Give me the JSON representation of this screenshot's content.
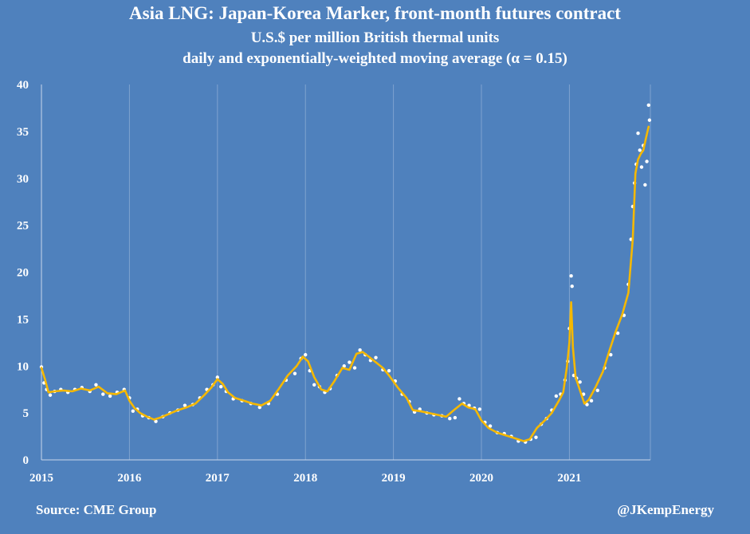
{
  "title": "Asia LNG: Japan-Korea Marker, front-month futures contract",
  "subtitle": "U.S.$ per million British thermal units",
  "subtitle2": "daily and exponentially-weighted moving average (α = 0.15)",
  "source": "Source: CME Group",
  "author": "@JKempEnergy",
  "colors": {
    "background": "#4f81bd",
    "grid": "#7fa3cf",
    "ema_line": "#f5b800",
    "daily_points": "#ffffff"
  },
  "chart_data": {
    "type": "line",
    "title": "Asia LNG: Japan-Korea Marker, front-month futures contract",
    "xlabel": "",
    "ylabel": "",
    "xlim": [
      2015,
      2021.92
    ],
    "ylim": [
      0,
      40
    ],
    "yticks": [
      "0",
      "5",
      "10",
      "15",
      "20",
      "25",
      "30",
      "35",
      "40"
    ],
    "xticks": [
      "2015",
      "2016",
      "2017",
      "2018",
      "2019",
      "2020",
      "2021"
    ],
    "grid": "vertical",
    "legend": "none",
    "series": [
      {
        "style": "yellow line",
        "x": [
          2015.0,
          2015.04,
          2015.08,
          2015.15,
          2015.25,
          2015.35,
          2015.45,
          2015.55,
          2015.65,
          2015.75,
          2015.85,
          2015.95,
          2016.0,
          2016.06,
          2016.12,
          2016.2,
          2016.28,
          2016.35,
          2016.45,
          2016.55,
          2016.65,
          2016.75,
          2016.85,
          2016.93,
          2017.0,
          2017.06,
          2017.12,
          2017.2,
          2017.3,
          2017.4,
          2017.5,
          2017.6,
          2017.7,
          2017.8,
          2017.9,
          2017.97,
          2018.03,
          2018.1,
          2018.18,
          2018.25,
          2018.33,
          2018.42,
          2018.5,
          2018.58,
          2018.65,
          2018.72,
          2018.8,
          2018.88,
          2018.95,
          2019.05,
          2019.15,
          2019.22,
          2019.3,
          2019.4,
          2019.5,
          2019.6,
          2019.7,
          2019.78,
          2019.85,
          2019.93,
          2020.0,
          2020.08,
          2020.18,
          2020.28,
          2020.38,
          2020.48,
          2020.55,
          2020.63,
          2020.72,
          2020.8,
          2020.88,
          2020.93,
          2020.97,
          2021.0,
          2021.02,
          2021.04,
          2021.07,
          2021.12,
          2021.17,
          2021.22,
          2021.3,
          2021.38,
          2021.45,
          2021.52,
          2021.6,
          2021.67,
          2021.72,
          2021.75,
          2021.78,
          2021.81,
          2021.84,
          2021.87,
          2021.9
        ],
        "y": [
          9.8,
          8.6,
          7.2,
          7.3,
          7.4,
          7.3,
          7.6,
          7.4,
          7.8,
          7.1,
          7.0,
          7.4,
          6.3,
          5.5,
          5.0,
          4.6,
          4.3,
          4.5,
          4.9,
          5.3,
          5.6,
          6.0,
          6.9,
          7.7,
          8.6,
          8.1,
          7.2,
          6.6,
          6.3,
          6.0,
          5.8,
          6.3,
          7.6,
          9.0,
          10.0,
          11.0,
          10.5,
          8.8,
          7.5,
          7.3,
          8.4,
          9.8,
          9.6,
          11.3,
          11.5,
          11.0,
          10.4,
          9.8,
          9.0,
          7.7,
          6.6,
          5.3,
          5.2,
          5.0,
          4.8,
          4.6,
          5.4,
          6.0,
          5.6,
          5.4,
          4.2,
          3.4,
          2.9,
          2.6,
          2.3,
          2.0,
          2.2,
          3.4,
          4.2,
          5.0,
          6.3,
          7.2,
          9.8,
          12.5,
          16.8,
          12.0,
          8.8,
          7.4,
          6.0,
          6.4,
          7.8,
          9.4,
          11.5,
          13.5,
          15.5,
          17.8,
          23.5,
          30.5,
          32.0,
          32.6,
          33.0,
          34.3,
          35.5
        ]
      },
      {
        "style": "white points",
        "x": [
          2015.0,
          2015.03,
          2015.06,
          2015.1,
          2015.15,
          2015.22,
          2015.3,
          2015.38,
          2015.46,
          2015.55,
          2015.62,
          2015.7,
          2015.78,
          2015.86,
          2015.94,
          2016.0,
          2016.04,
          2016.09,
          2016.15,
          2016.22,
          2016.3,
          2016.38,
          2016.46,
          2016.55,
          2016.63,
          2016.72,
          2016.8,
          2016.88,
          2016.95,
          2017.0,
          2017.04,
          2017.1,
          2017.18,
          2017.28,
          2017.38,
          2017.48,
          2017.58,
          2017.68,
          2017.78,
          2017.88,
          2017.95,
          2018.0,
          2018.05,
          2018.1,
          2018.16,
          2018.22,
          2018.28,
          2018.36,
          2018.44,
          2018.5,
          2018.56,
          2018.62,
          2018.68,
          2018.74,
          2018.8,
          2018.88,
          2018.95,
          2019.02,
          2019.1,
          2019.18,
          2019.24,
          2019.3,
          2019.38,
          2019.46,
          2019.55,
          2019.64,
          2019.7,
          2019.75,
          2019.8,
          2019.86,
          2019.92,
          2019.98,
          2020.04,
          2020.1,
          2020.18,
          2020.26,
          2020.34,
          2020.42,
          2020.5,
          2020.56,
          2020.62,
          2020.68,
          2020.74,
          2020.8,
          2020.85,
          2020.9,
          2020.95,
          2020.98,
          2021.0,
          2021.02,
          2021.03,
          2021.05,
          2021.08,
          2021.12,
          2021.16,
          2021.2,
          2021.25,
          2021.32,
          2021.4,
          2021.47,
          2021.55,
          2021.62,
          2021.67,
          2021.7,
          2021.72,
          2021.74,
          2021.76,
          2021.78,
          2021.8,
          2021.82,
          2021.84,
          2021.86,
          2021.88,
          2021.9,
          2021.91
        ],
        "y": [
          9.9,
          8.2,
          7.5,
          6.9,
          7.3,
          7.5,
          7.2,
          7.5,
          7.7,
          7.3,
          8.0,
          7.0,
          6.8,
          7.2,
          7.5,
          6.6,
          5.2,
          5.4,
          4.7,
          4.5,
          4.1,
          4.6,
          5.0,
          5.3,
          5.8,
          5.9,
          6.6,
          7.5,
          8.0,
          8.8,
          7.8,
          7.3,
          6.5,
          6.3,
          6.0,
          5.6,
          6.0,
          7.0,
          8.5,
          9.2,
          10.8,
          11.2,
          9.5,
          8.0,
          7.8,
          7.2,
          7.6,
          9.0,
          10.0,
          10.4,
          9.8,
          11.7,
          11.2,
          10.6,
          10.9,
          9.6,
          9.5,
          8.4,
          7.0,
          6.2,
          5.1,
          5.4,
          5.0,
          4.8,
          4.7,
          4.4,
          4.5,
          6.5,
          6.0,
          5.8,
          5.5,
          5.4,
          4.0,
          3.6,
          2.9,
          2.8,
          2.5,
          2.0,
          1.9,
          2.2,
          2.4,
          3.8,
          4.4,
          5.3,
          6.8,
          7.0,
          8.5,
          10.5,
          14.0,
          19.6,
          18.5,
          9.0,
          8.7,
          8.3,
          7.0,
          5.9,
          6.3,
          7.4,
          9.8,
          11.2,
          13.5,
          15.4,
          18.7,
          23.5,
          27.0,
          29.5,
          31.5,
          34.8,
          33.0,
          31.2,
          33.5,
          29.3,
          31.8,
          37.8,
          36.2
        ]
      }
    ]
  }
}
